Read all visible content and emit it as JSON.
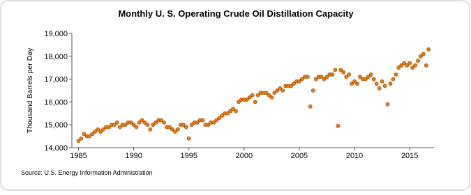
{
  "chart_data": {
    "type": "scatter",
    "title": "Monthly U. S. Operating Crude Oil Distillation Capacity",
    "y_label": "Thousand Barrels per Day",
    "source": "Source: U.S. Energy Information Administration",
    "color": "#e07b1a",
    "grid": false,
    "xlim": [
      1984.4,
      2017.2
    ],
    "xticks": [
      1985,
      1990,
      1995,
      2000,
      2005,
      2010,
      2015
    ],
    "ylim": [
      14000,
      19000
    ],
    "yticks": [
      {
        "value": 14000,
        "label": "14,000"
      },
      {
        "value": 15000,
        "label": "15,000"
      },
      {
        "value": 16000,
        "label": "16,000"
      },
      {
        "value": 17000,
        "label": "17,000"
      },
      {
        "value": 18000,
        "label": "18,000"
      },
      {
        "value": 19000,
        "label": "19,000"
      }
    ],
    "x": [
      1985,
      1985.25,
      1985.5,
      1985.75,
      1986,
      1986.25,
      1986.5,
      1986.75,
      1987,
      1987.25,
      1987.5,
      1987.75,
      1988,
      1988.25,
      1988.5,
      1988.75,
      1989,
      1989.25,
      1989.5,
      1989.75,
      1990,
      1990.25,
      1990.5,
      1990.75,
      1991,
      1991.25,
      1991.5,
      1991.75,
      1992,
      1992.25,
      1992.5,
      1992.75,
      1993,
      1993.25,
      1993.5,
      1993.75,
      1994,
      1994.25,
      1994.5,
      1994.75,
      1995,
      1995.25,
      1995.5,
      1995.75,
      1996,
      1996.25,
      1996.5,
      1996.75,
      1997,
      1997.25,
      1997.5,
      1997.75,
      1998,
      1998.25,
      1998.5,
      1998.75,
      1999,
      1999.25,
      1999.5,
      1999.75,
      2000,
      2000.25,
      2000.5,
      2000.75,
      2001,
      2001.25,
      2001.5,
      2001.75,
      2002,
      2002.25,
      2002.5,
      2002.75,
      2003,
      2003.25,
      2003.5,
      2003.75,
      2004,
      2004.25,
      2004.5,
      2004.75,
      2005,
      2005.25,
      2005.5,
      2005.75,
      2006,
      2006.25,
      2006.5,
      2006.75,
      2007,
      2007.25,
      2007.5,
      2007.75,
      2008,
      2008.25,
      2008.5,
      2008.75,
      2009,
      2009.25,
      2009.5,
      2009.75,
      2010,
      2010.25,
      2010.5,
      2010.75,
      2011,
      2011.25,
      2011.5,
      2011.75,
      2012,
      2012.25,
      2012.5,
      2012.75,
      2013,
      2013.25,
      2013.5,
      2013.75,
      2014,
      2014.25,
      2014.5,
      2014.75,
      2015,
      2015.25,
      2015.5,
      2015.75,
      2016,
      2016.25,
      2016.5,
      2016.7
    ],
    "values": [
      14300,
      14400,
      14600,
      14500,
      14500,
      14600,
      14700,
      14800,
      14700,
      14800,
      14900,
      14900,
      15000,
      15000,
      15100,
      14900,
      15000,
      15000,
      15100,
      15100,
      15000,
      14900,
      15100,
      15200,
      15100,
      15000,
      14800,
      15000,
      15100,
      15200,
      15200,
      15100,
      14900,
      14900,
      14800,
      14700,
      14800,
      15000,
      15000,
      14900,
      14400,
      15000,
      15100,
      15100,
      15200,
      15200,
      15000,
      15000,
      15100,
      15100,
      15200,
      15300,
      15400,
      15500,
      15500,
      15600,
      15700,
      15600,
      16000,
      16100,
      16100,
      16100,
      16200,
      16300,
      16000,
      16300,
      16400,
      16400,
      16400,
      16300,
      16200,
      16400,
      16500,
      16600,
      16500,
      16700,
      16700,
      16700,
      16800,
      16900,
      16900,
      17000,
      17100,
      17100,
      15800,
      16500,
      17000,
      17100,
      17100,
      17000,
      17100,
      17200,
      17200,
      17400,
      14950,
      17400,
      17300,
      17100,
      17200,
      16800,
      16900,
      16800,
      17100,
      17000,
      17000,
      17100,
      17200,
      17000,
      16800,
      16600,
      16900,
      16700,
      15900,
      16800,
      17000,
      17200,
      17500,
      17600,
      17700,
      17600,
      17700,
      17500,
      17600,
      17800,
      18000,
      18100,
      17600,
      18300
    ]
  }
}
